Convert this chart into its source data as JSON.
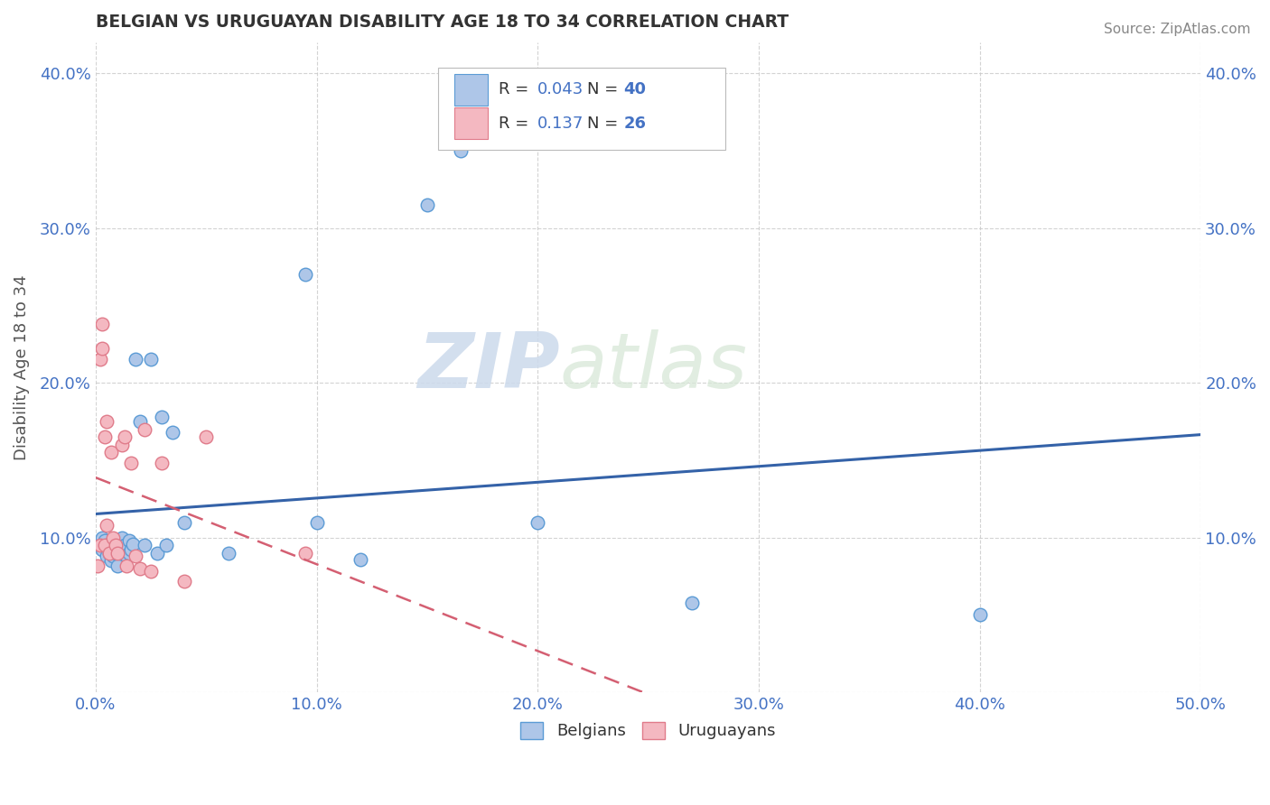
{
  "title": "BELGIAN VS URUGUAYAN DISABILITY AGE 18 TO 34 CORRELATION CHART",
  "source": "Source: ZipAtlas.com",
  "ylabel": "Disability Age 18 to 34",
  "xlim": [
    0.0,
    0.5
  ],
  "ylim": [
    0.0,
    0.42
  ],
  "xticks": [
    0.0,
    0.1,
    0.2,
    0.3,
    0.4,
    0.5
  ],
  "yticks": [
    0.0,
    0.1,
    0.2,
    0.3,
    0.4
  ],
  "xticklabels": [
    "0.0%",
    "10.0%",
    "20.0%",
    "30.0%",
    "40.0%",
    "50.0%"
  ],
  "yticklabels": [
    "",
    "10.0%",
    "20.0%",
    "30.0%",
    "40.0%"
  ],
  "right_yticklabels": [
    "",
    "10.0%",
    "20.0%",
    "30.0%",
    "40.0%"
  ],
  "belgian_color": "#aec6e8",
  "uruguayan_color": "#f4b8c1",
  "belgian_edge": "#5b9bd5",
  "uruguayan_edge": "#e07b8a",
  "trend_belgian_color": "#3462a8",
  "trend_uruguayan_color": "#d45f72",
  "R_belgian": 0.043,
  "N_belgian": 40,
  "R_uruguayan": 0.137,
  "N_uruguayan": 26,
  "belgians_x": [
    0.002,
    0.003,
    0.003,
    0.004,
    0.005,
    0.006,
    0.006,
    0.007,
    0.007,
    0.008,
    0.008,
    0.009,
    0.01,
    0.01,
    0.011,
    0.012,
    0.013,
    0.014,
    0.015,
    0.015,
    0.016,
    0.017,
    0.018,
    0.02,
    0.022,
    0.025,
    0.028,
    0.03,
    0.032,
    0.035,
    0.04,
    0.06,
    0.095,
    0.1,
    0.12,
    0.15,
    0.165,
    0.2,
    0.27,
    0.4
  ],
  "belgians_y": [
    0.095,
    0.1,
    0.092,
    0.098,
    0.088,
    0.09,
    0.096,
    0.085,
    0.092,
    0.088,
    0.095,
    0.09,
    0.082,
    0.095,
    0.092,
    0.1,
    0.095,
    0.088,
    0.09,
    0.098,
    0.092,
    0.096,
    0.215,
    0.175,
    0.095,
    0.215,
    0.09,
    0.178,
    0.095,
    0.168,
    0.11,
    0.09,
    0.27,
    0.11,
    0.086,
    0.315,
    0.35,
    0.11,
    0.058,
    0.05
  ],
  "uruguayans_x": [
    0.001,
    0.002,
    0.002,
    0.003,
    0.003,
    0.004,
    0.004,
    0.005,
    0.005,
    0.006,
    0.007,
    0.008,
    0.009,
    0.01,
    0.012,
    0.013,
    0.014,
    0.016,
    0.018,
    0.02,
    0.022,
    0.025,
    0.03,
    0.04,
    0.05,
    0.095
  ],
  "uruguayans_y": [
    0.082,
    0.095,
    0.215,
    0.222,
    0.238,
    0.095,
    0.165,
    0.108,
    0.175,
    0.09,
    0.155,
    0.1,
    0.095,
    0.09,
    0.16,
    0.165,
    0.082,
    0.148,
    0.088,
    0.08,
    0.17,
    0.078,
    0.148,
    0.072,
    0.165,
    0.09
  ],
  "watermark_zip": "ZIP",
  "watermark_atlas": "atlas",
  "background_color": "#ffffff",
  "grid_color": "#c8c8c8",
  "title_color": "#333333",
  "axis_label_color": "#555555",
  "tick_color": "#4472c4",
  "legend_text_color": "#333333",
  "legend_value_color": "#4472c4"
}
